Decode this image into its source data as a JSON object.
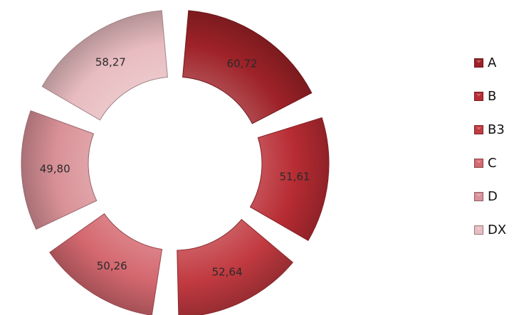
{
  "chart_data": {
    "type": "pie",
    "variant": "exploded-doughnut",
    "categories": [
      "A",
      "B",
      "B3",
      "C",
      "D",
      "DX"
    ],
    "values": [
      60.72,
      51.61,
      52.64,
      50.26,
      49.8,
      58.27
    ],
    "value_labels": [
      "60,72",
      "51,61",
      "52,64",
      "50,26",
      "49,80",
      "58,27"
    ],
    "title": "",
    "legend_position": "right",
    "colors": [
      "#9e2228",
      "#b82c33",
      "#c13a40",
      "#d4686f",
      "#d99197",
      "#e8bcc0"
    ]
  }
}
